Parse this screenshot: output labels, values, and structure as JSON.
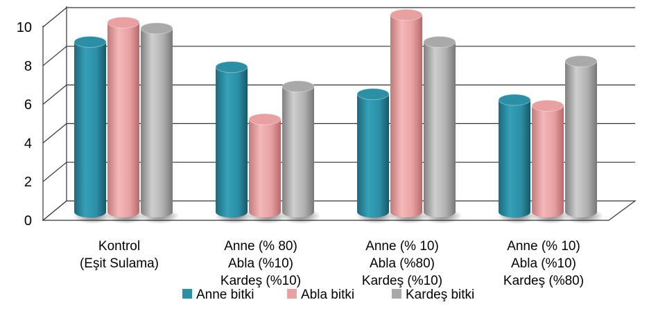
{
  "chart_data": {
    "type": "bar",
    "style": "3d-cylinder",
    "categories": [
      [
        "Kontrol",
        "(Eşit Sulama)"
      ],
      [
        "Anne (% 80)",
        "Abla (%10)",
        "Kardeş (%10)"
      ],
      [
        "Anne (% 10)",
        "Abla (%80)",
        "Kardeş (%10)"
      ],
      [
        "Anne (% 10)",
        "Abla (%10)",
        "Kardeş (%80)"
      ]
    ],
    "series": [
      {
        "name": "Anne bitki",
        "values": [
          8.8,
          7.5,
          6.1,
          5.8
        ]
      },
      {
        "name": "Abla bitki",
        "values": [
          9.8,
          4.8,
          10.2,
          5.5
        ]
      },
      {
        "name": "Kardeş bitki",
        "values": [
          9.5,
          6.5,
          8.8,
          7.8
        ]
      }
    ],
    "series_colors": [
      "#2b8fa6",
      "#e8a0a0",
      "#a9a9a9"
    ],
    "ylim": [
      0,
      10
    ],
    "yticks": [
      "0",
      "2",
      "4",
      "6",
      "8",
      "10"
    ],
    "grid": true,
    "legend_position": "bottom",
    "title": "",
    "xlabel": "",
    "ylabel": ""
  }
}
